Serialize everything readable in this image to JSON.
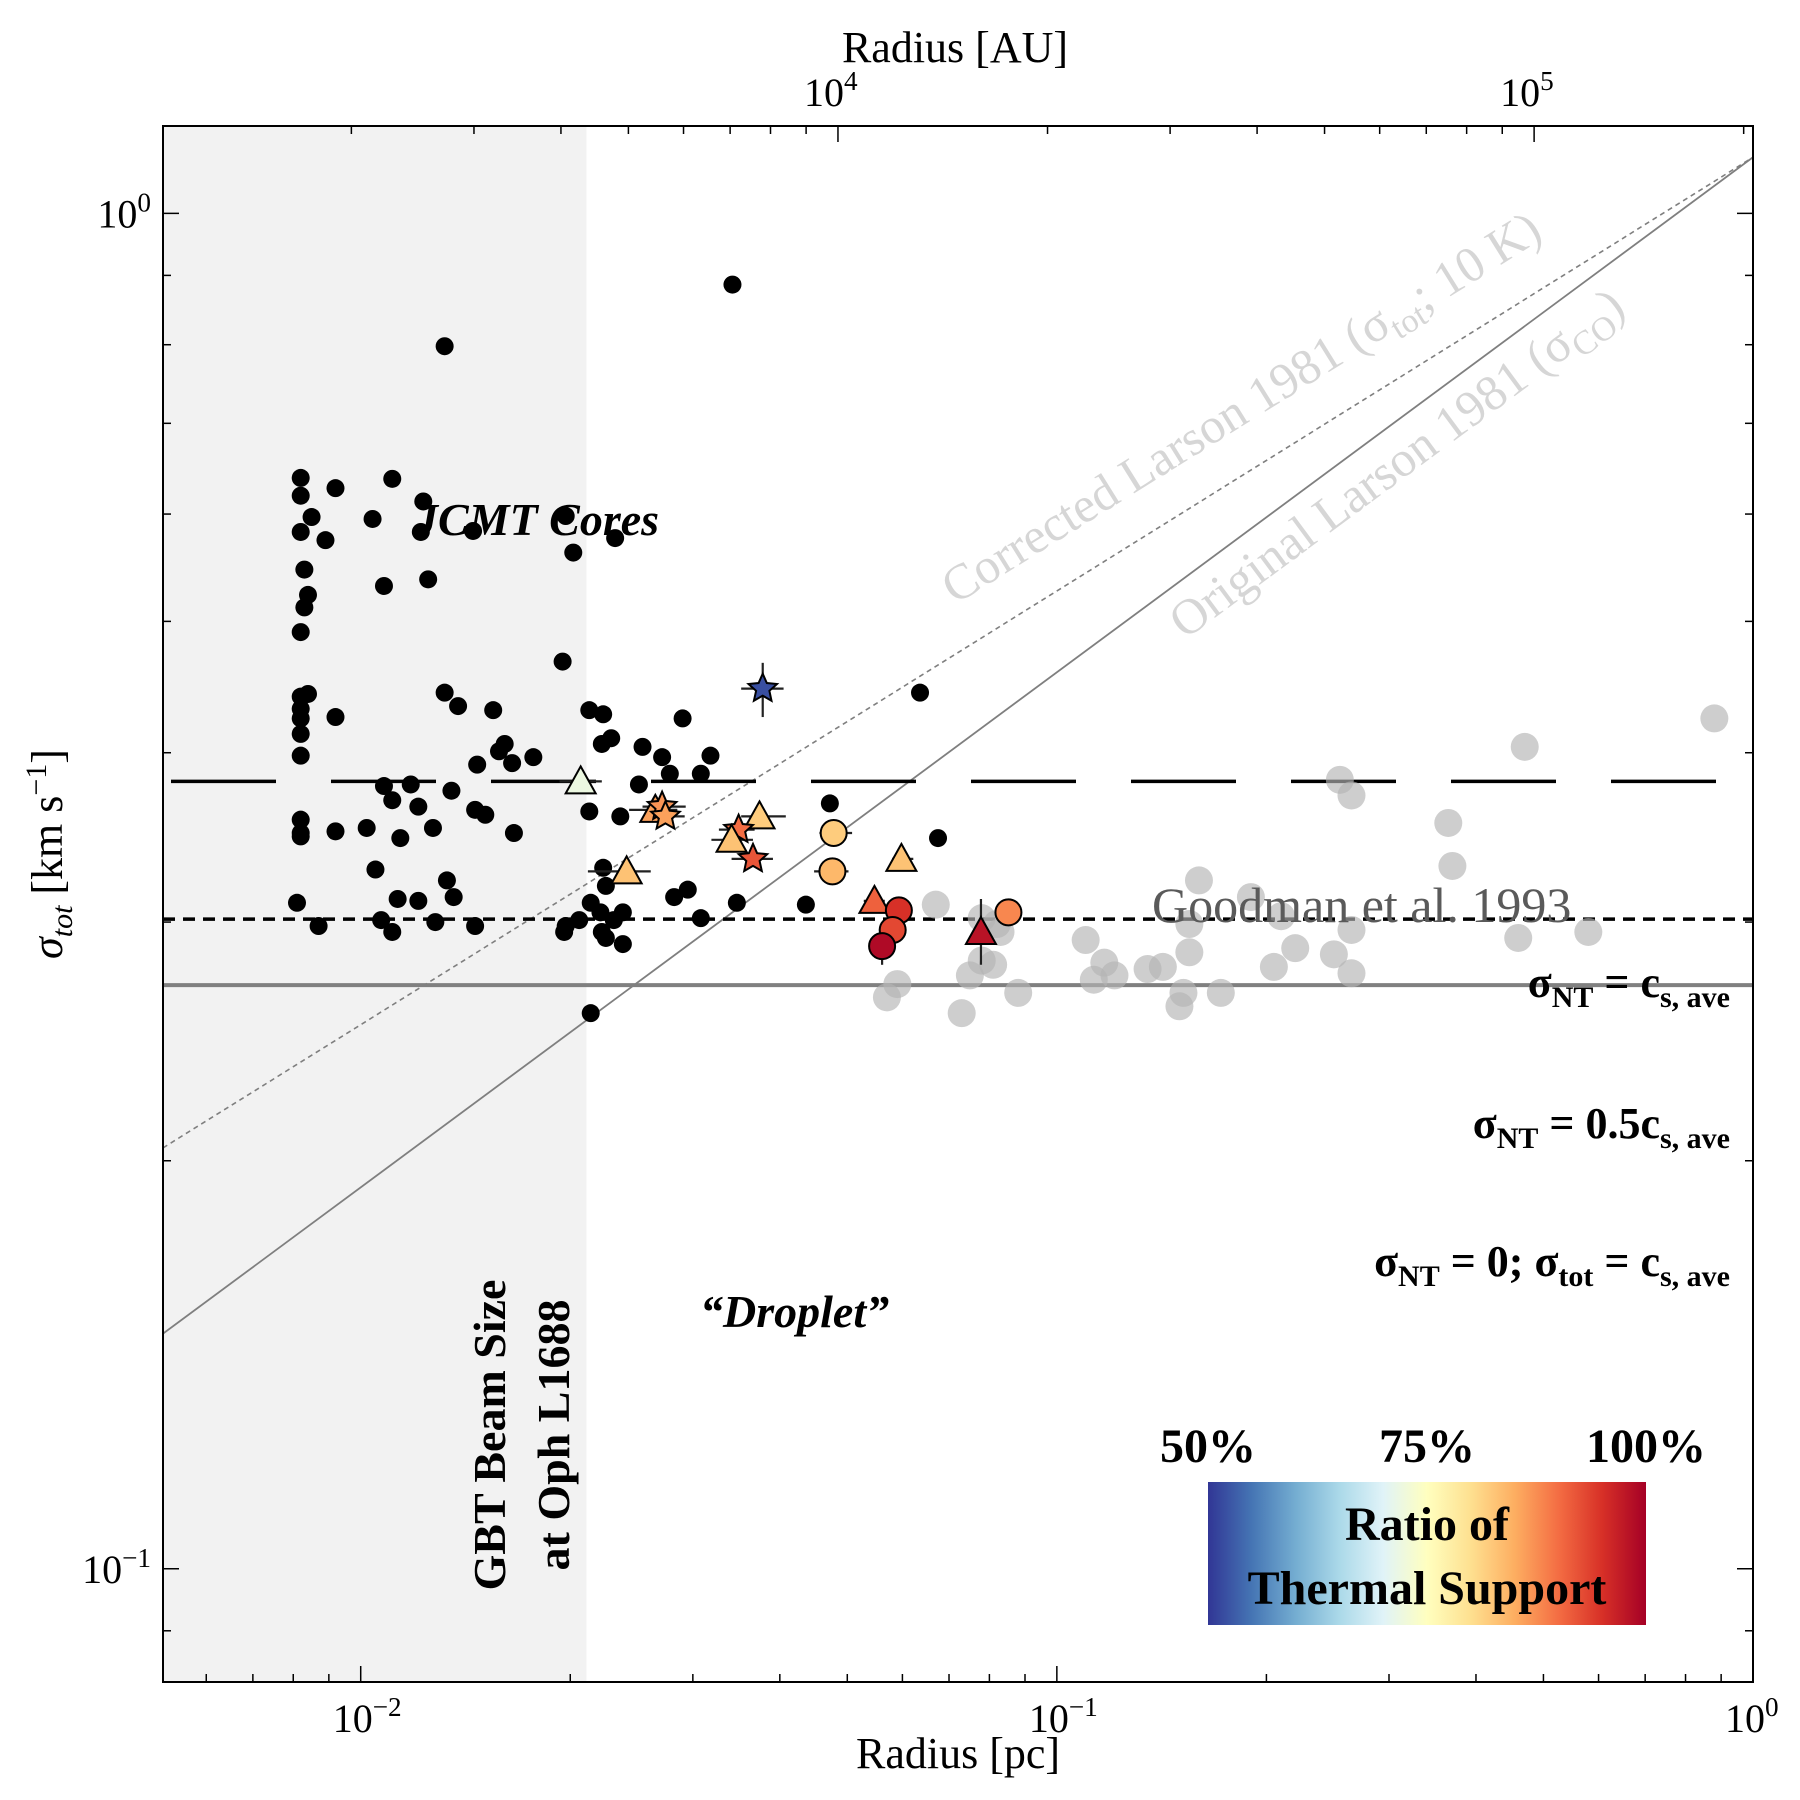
{
  "chart_data": {
    "type": "scatter",
    "xlabel": "Radius [pc]",
    "xlabel_top": "Radius [AU]",
    "ylabel_parts": [
      "σ",
      "tot",
      " [km s",
      "−1",
      "]"
    ],
    "x_scale": "log",
    "y_scale": "log",
    "xlim": [
      0.0052,
      1.0
    ],
    "ylim": [
      0.0825,
      1.16
    ],
    "x_ticks": [
      {
        "value": 0.01,
        "base": "10",
        "exp": "−2"
      },
      {
        "value": 0.1,
        "base": "10",
        "exp": "−1"
      },
      {
        "value": 1.0,
        "base": "10",
        "exp": "0"
      }
    ],
    "x_top_ticks": [
      {
        "au": 10000,
        "base": "10",
        "exp": "4"
      },
      {
        "au": 100000,
        "base": "10",
        "exp": "5"
      }
    ],
    "y_ticks": [
      {
        "value": 0.1,
        "base": "10",
        "exp": "−1"
      },
      {
        "value": 1.0,
        "base": "10",
        "exp": "0"
      }
    ],
    "grid": false,
    "beam_shade": {
      "x_max": 0.0211,
      "label_lines": [
        "GBT Beam Size",
        "at Oph L1688"
      ]
    },
    "lines": {
      "cs_ave": {
        "y": 0.2695,
        "label_parts": [
          "σ",
          "NT",
          " = 0; σ",
          "tot",
          " = c",
          "s, ave"
        ]
      },
      "half_cs": {
        "y": 0.3015,
        "label_parts": [
          "σ",
          "NT",
          " = 0.5c",
          "s, ave"
        ]
      },
      "sigma_nt_cs": {
        "y": 0.381,
        "label_parts": [
          "σ",
          "NT",
          " = c",
          "s, ave"
        ]
      },
      "original_larson": {
        "coef": 1.1,
        "power": 0.38,
        "label_parts": [
          "Original Larson 1981 (σ",
          "CO",
          ")"
        ]
      },
      "corrected_larson": {
        "coef": 1.1,
        "power": 0.32,
        "label_parts": [
          "Corrected Larson 1981 (σ",
          "tot",
          "; 10 K)"
        ]
      }
    },
    "annotations": {
      "jcmt": "JCMT Cores",
      "droplet": "“Droplet”",
      "goodman": "Goodman et al. 1993"
    },
    "colorbar": {
      "label_lines": [
        "Ratio of",
        "Thermal Support"
      ],
      "ticks": [
        "50%",
        "75%",
        "100%"
      ],
      "colors": [
        "#313695",
        "#4575b4",
        "#74add1",
        "#abd9e9",
        "#e0f3f8",
        "#ffffbf",
        "#fee090",
        "#fdae61",
        "#f46d43",
        "#d73027",
        "#a50026"
      ]
    },
    "series": [
      {
        "role": "jcmt_cores",
        "marker": "circle",
        "color": "#000000",
        "points": [
          [
            0.0342,
            0.886
          ],
          [
            0.0132,
            0.798
          ],
          [
            0.0082,
            0.638
          ],
          [
            0.0082,
            0.619
          ],
          [
            0.0085,
            0.597
          ],
          [
            0.0082,
            0.582
          ],
          [
            0.0089,
            0.574
          ],
          [
            0.0083,
            0.546
          ],
          [
            0.0084,
            0.523
          ],
          [
            0.0083,
            0.512
          ],
          [
            0.0092,
            0.627
          ],
          [
            0.0111,
            0.637
          ],
          [
            0.0123,
            0.613
          ],
          [
            0.0104,
            0.595
          ],
          [
            0.0122,
            0.582
          ],
          [
            0.0145,
            0.583
          ],
          [
            0.0108,
            0.531
          ],
          [
            0.0197,
            0.598
          ],
          [
            0.0202,
            0.562
          ],
          [
            0.0232,
            0.576
          ],
          [
            0.0125,
            0.537
          ],
          [
            0.0082,
            0.491
          ],
          [
            0.0195,
            0.467
          ],
          [
            0.0082,
            0.44
          ],
          [
            0.0084,
            0.442
          ],
          [
            0.0082,
            0.431
          ],
          [
            0.0082,
            0.424
          ],
          [
            0.0082,
            0.413
          ],
          [
            0.0082,
            0.398
          ],
          [
            0.0092,
            0.425
          ],
          [
            0.0132,
            0.443
          ],
          [
            0.0138,
            0.433
          ],
          [
            0.0155,
            0.43
          ],
          [
            0.0213,
            0.43
          ],
          [
            0.0223,
            0.427
          ],
          [
            0.029,
            0.424
          ],
          [
            0.0636,
            0.443
          ],
          [
            0.0161,
            0.406
          ],
          [
            0.0158,
            0.401
          ],
          [
            0.0177,
            0.397
          ],
          [
            0.0165,
            0.393
          ],
          [
            0.0147,
            0.392
          ],
          [
            0.0229,
            0.41
          ],
          [
            0.0254,
            0.404
          ],
          [
            0.0271,
            0.397
          ],
          [
            0.0318,
            0.398
          ],
          [
            0.0222,
            0.406
          ],
          [
            0.0278,
            0.386
          ],
          [
            0.0308,
            0.386
          ],
          [
            0.0251,
            0.379
          ],
          [
            0.0108,
            0.378
          ],
          [
            0.0118,
            0.379
          ],
          [
            0.0135,
            0.375
          ],
          [
            0.0111,
            0.369
          ],
          [
            0.0121,
            0.365
          ],
          [
            0.0146,
            0.363
          ],
          [
            0.0151,
            0.36
          ],
          [
            0.0213,
            0.362
          ],
          [
            0.0236,
            0.359
          ],
          [
            0.0082,
            0.357
          ],
          [
            0.0102,
            0.352
          ],
          [
            0.0092,
            0.35
          ],
          [
            0.0127,
            0.352
          ],
          [
            0.0082,
            0.349
          ],
          [
            0.0082,
            0.347
          ],
          [
            0.0166,
            0.349
          ],
          [
            0.0114,
            0.346
          ],
          [
            0.0105,
            0.328
          ],
          [
            0.0133,
            0.322
          ],
          [
            0.0113,
            0.312
          ],
          [
            0.0223,
            0.329
          ],
          [
            0.0472,
            0.367
          ],
          [
            0.0675,
            0.346
          ],
          [
            0.0081,
            0.31
          ],
          [
            0.0087,
            0.298
          ],
          [
            0.0107,
            0.301
          ],
          [
            0.0128,
            0.3
          ],
          [
            0.0146,
            0.298
          ],
          [
            0.0111,
            0.295
          ],
          [
            0.0221,
            0.305
          ],
          [
            0.0214,
            0.31
          ],
          [
            0.0196,
            0.295
          ],
          [
            0.0206,
            0.301
          ],
          [
            0.0231,
            0.301
          ],
          [
            0.0225,
            0.292
          ],
          [
            0.0238,
            0.289
          ],
          [
            0.0225,
            0.319
          ],
          [
            0.0282,
            0.313
          ],
          [
            0.0238,
            0.305
          ],
          [
            0.0347,
            0.31
          ],
          [
            0.0436,
            0.309
          ],
          [
            0.0295,
            0.317
          ],
          [
            0.0308,
            0.302
          ],
          [
            0.0222,
            0.295
          ],
          [
            0.0214,
            0.257
          ],
          [
            0.0121,
            0.311
          ],
          [
            0.0136,
            0.313
          ],
          [
            0.0197,
            0.298
          ]
        ]
      },
      {
        "role": "goodman_1993",
        "marker": "circle",
        "color": "#b4b4b4",
        "points": [
          [
            0.88,
            0.424
          ],
          [
            0.47,
            0.404
          ],
          [
            0.255,
            0.382
          ],
          [
            0.265,
            0.372
          ],
          [
            0.365,
            0.355
          ],
          [
            0.37,
            0.33
          ],
          [
            0.16,
            0.322
          ],
          [
            0.19,
            0.313
          ],
          [
            0.067,
            0.309
          ],
          [
            0.078,
            0.302
          ],
          [
            0.082,
            0.299
          ],
          [
            0.083,
            0.295
          ],
          [
            0.11,
            0.291
          ],
          [
            0.155,
            0.299
          ],
          [
            0.21,
            0.303
          ],
          [
            0.265,
            0.296
          ],
          [
            0.46,
            0.292
          ],
          [
            0.58,
            0.295
          ],
          [
            0.22,
            0.287
          ],
          [
            0.25,
            0.284
          ],
          [
            0.155,
            0.285
          ],
          [
            0.078,
            0.281
          ],
          [
            0.081,
            0.279
          ],
          [
            0.117,
            0.28
          ],
          [
            0.135,
            0.277
          ],
          [
            0.142,
            0.278
          ],
          [
            0.205,
            0.278
          ],
          [
            0.265,
            0.275
          ],
          [
            0.075,
            0.274
          ],
          [
            0.113,
            0.272
          ],
          [
            0.121,
            0.274
          ],
          [
            0.088,
            0.266
          ],
          [
            0.152,
            0.266
          ],
          [
            0.172,
            0.266
          ],
          [
            0.15,
            0.26
          ],
          [
            0.073,
            0.257
          ],
          [
            0.057,
            0.264
          ],
          [
            0.059,
            0.27
          ]
        ]
      },
      {
        "role": "gbt_cores",
        "marker": "mixed",
        "points": [
          {
            "x": 0.0207,
            "y": 0.381,
            "m": "triangle",
            "ratio": 0.72,
            "xerr": [
              0.0193,
              0.0222
            ]
          },
          {
            "x": 0.0265,
            "y": 0.363,
            "m": "triangle",
            "ratio": 0.86,
            "xerr": [
              0.0243,
              0.0285
            ]
          },
          {
            "x": 0.0271,
            "y": 0.365,
            "m": "star",
            "ratio": 0.87,
            "xerr": [
              0.0254,
              0.0293
            ]
          },
          {
            "x": 0.0274,
            "y": 0.359,
            "m": "star",
            "ratio": 0.86,
            "xerr": [
              0.0255,
              0.0292
            ]
          },
          {
            "x": 0.0374,
            "y": 0.359,
            "m": "triangle",
            "ratio": 0.82,
            "xerr": [
              0.0352,
              0.0408
            ]
          },
          {
            "x": 0.0349,
            "y": 0.351,
            "m": "star",
            "ratio": 0.9,
            "xerr": [
              0.0327,
              0.0368
            ]
          },
          {
            "x": 0.0341,
            "y": 0.345,
            "m": "triangle",
            "ratio": 0.83,
            "xerr": [
              0.0319,
              0.0366
            ]
          },
          {
            "x": 0.0366,
            "y": 0.334,
            "m": "star",
            "ratio": 0.92,
            "xerr": [
              0.0341,
              0.0391
            ]
          },
          {
            "x": 0.0241,
            "y": 0.327,
            "m": "triangle",
            "ratio": 0.83,
            "xerr": [
              0.0212,
              0.0261
            ]
          },
          {
            "x": 0.0478,
            "y": 0.349,
            "m": "circle",
            "ratio": 0.82,
            "xerr": [
              0.0456,
              0.0508
            ]
          },
          {
            "x": 0.0476,
            "y": 0.327,
            "m": "circle",
            "ratio": 0.84,
            "xerr": [
              0.0448,
              0.0502
            ]
          },
          {
            "x": 0.0598,
            "y": 0.334,
            "m": "triangle",
            "ratio": 0.83,
            "xerr": [
              0.058,
              0.0622
            ]
          },
          {
            "x": 0.0547,
            "y": 0.311,
            "m": "triangle",
            "ratio": 0.91,
            "xerr": [
              0.0528,
              0.0566
            ]
          },
          {
            "x": 0.0593,
            "y": 0.306,
            "m": "circle",
            "ratio": 0.95
          },
          {
            "x": 0.0581,
            "y": 0.296,
            "m": "circle",
            "ratio": 0.93
          },
          {
            "x": 0.0561,
            "y": 0.288,
            "m": "circle",
            "ratio": 0.99,
            "yerr": [
              0.279,
              0.298
            ]
          },
          {
            "x": 0.0852,
            "y": 0.305,
            "m": "circle",
            "ratio": 0.88
          },
          {
            "x": 0.0778,
            "y": 0.295,
            "m": "triangle",
            "ratio": 0.98,
            "yerr": [
              0.279,
              0.312
            ]
          },
          {
            "x": 0.0378,
            "y": 0.446,
            "m": "star",
            "ratio": 0.52,
            "xerr": [
              0.0352,
              0.0405
            ],
            "yerr": [
              0.425,
              0.466
            ]
          }
        ]
      }
    ]
  }
}
